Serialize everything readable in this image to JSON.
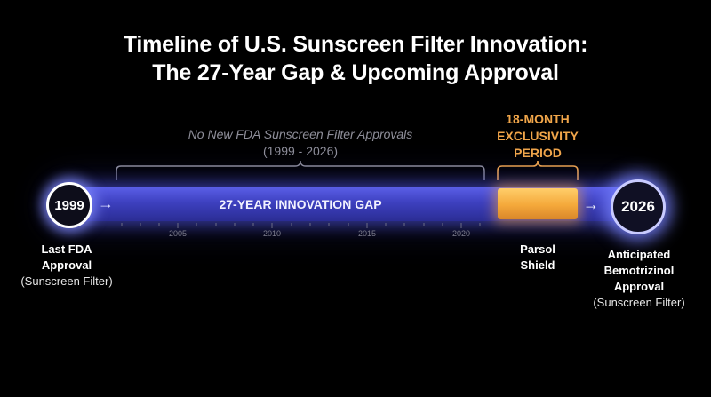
{
  "title": {
    "line1": "Timeline of U.S. Sunscreen Filter Innovation:",
    "line2": "The 27-Year Gap & Upcoming Approval"
  },
  "gap_note": {
    "line1": "No New FDA Sunscreen Filter Approvals",
    "line2": "(1999 - 2026)"
  },
  "exclusivity": {
    "line1": "18-MONTH",
    "line2": "EXCLUSIVITY",
    "line3": "PERIOD"
  },
  "bar_label": "27-YEAR INNOVATION GAP",
  "nodes": {
    "start_year": "1999",
    "end_year": "2026"
  },
  "year_ticks": [
    "2005",
    "2010",
    "2015",
    "2020"
  ],
  "captions": {
    "start": {
      "line1": "Last FDA",
      "line2": "Approval",
      "line3": "(Sunscreen Filter)"
    },
    "parsol": {
      "line1": "Parsol",
      "line2": "Shield"
    },
    "end": {
      "line1": "Anticipated",
      "line2": "Bemotrizinol",
      "line3": "Approval",
      "line4": "(Sunscreen Filter)"
    }
  },
  "icons": {
    "start_arrow": "arrow-right-icon",
    "end_arrow": "arrow-right-icon"
  },
  "colors": {
    "background": "#000000",
    "bar": "#3d40bf",
    "exclusivity": "#f1a64a",
    "muted_text": "#8f8f9a"
  }
}
